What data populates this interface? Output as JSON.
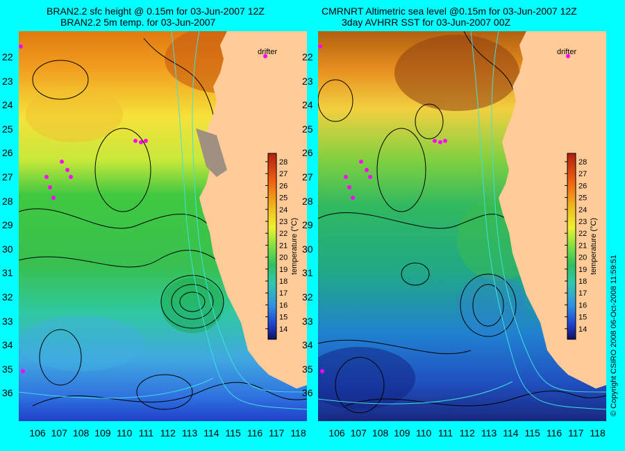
{
  "panels": [
    {
      "title_line1": "BRAN2.2 sfc height @ 0.15m for 03-Jun-2007 12Z",
      "title_line2": "BRAN2.2 5m temp. for 03-Jun-2007",
      "drifter_label": "drifter"
    },
    {
      "title_line1": "CMRNRT Altimetric sea level  @0.15m  for 03-Jun-2007 12Z",
      "title_line2": "3day AVHRR SST for 03-Jun-2007 00Z",
      "drifter_label": "drifter"
    }
  ],
  "lat_labels": [
    "22",
    "23",
    "24",
    "25",
    "26",
    "27",
    "28",
    "29",
    "30",
    "31",
    "32",
    "33",
    "34",
    "35",
    "36"
  ],
  "lon_labels": [
    "106",
    "107",
    "108",
    "109",
    "110",
    "111",
    "112",
    "113",
    "114",
    "115",
    "116",
    "117",
    "118"
  ],
  "colorbar": {
    "label": "temperature (°C)",
    "ticks": [
      "28",
      "27",
      "26",
      "25",
      "24",
      "23",
      "22",
      "21",
      "20",
      "19",
      "18",
      "17",
      "16",
      "15",
      "14"
    ]
  },
  "copyright": "© Copyright CSIRO 2008   06-Oct-2008 11:59:51",
  "colors": {
    "background": "#00ffff",
    "land": "#ffcc99",
    "drifter": "#ff00ff",
    "contour": "#000000",
    "bathymetry": "#40e0e0"
  }
}
